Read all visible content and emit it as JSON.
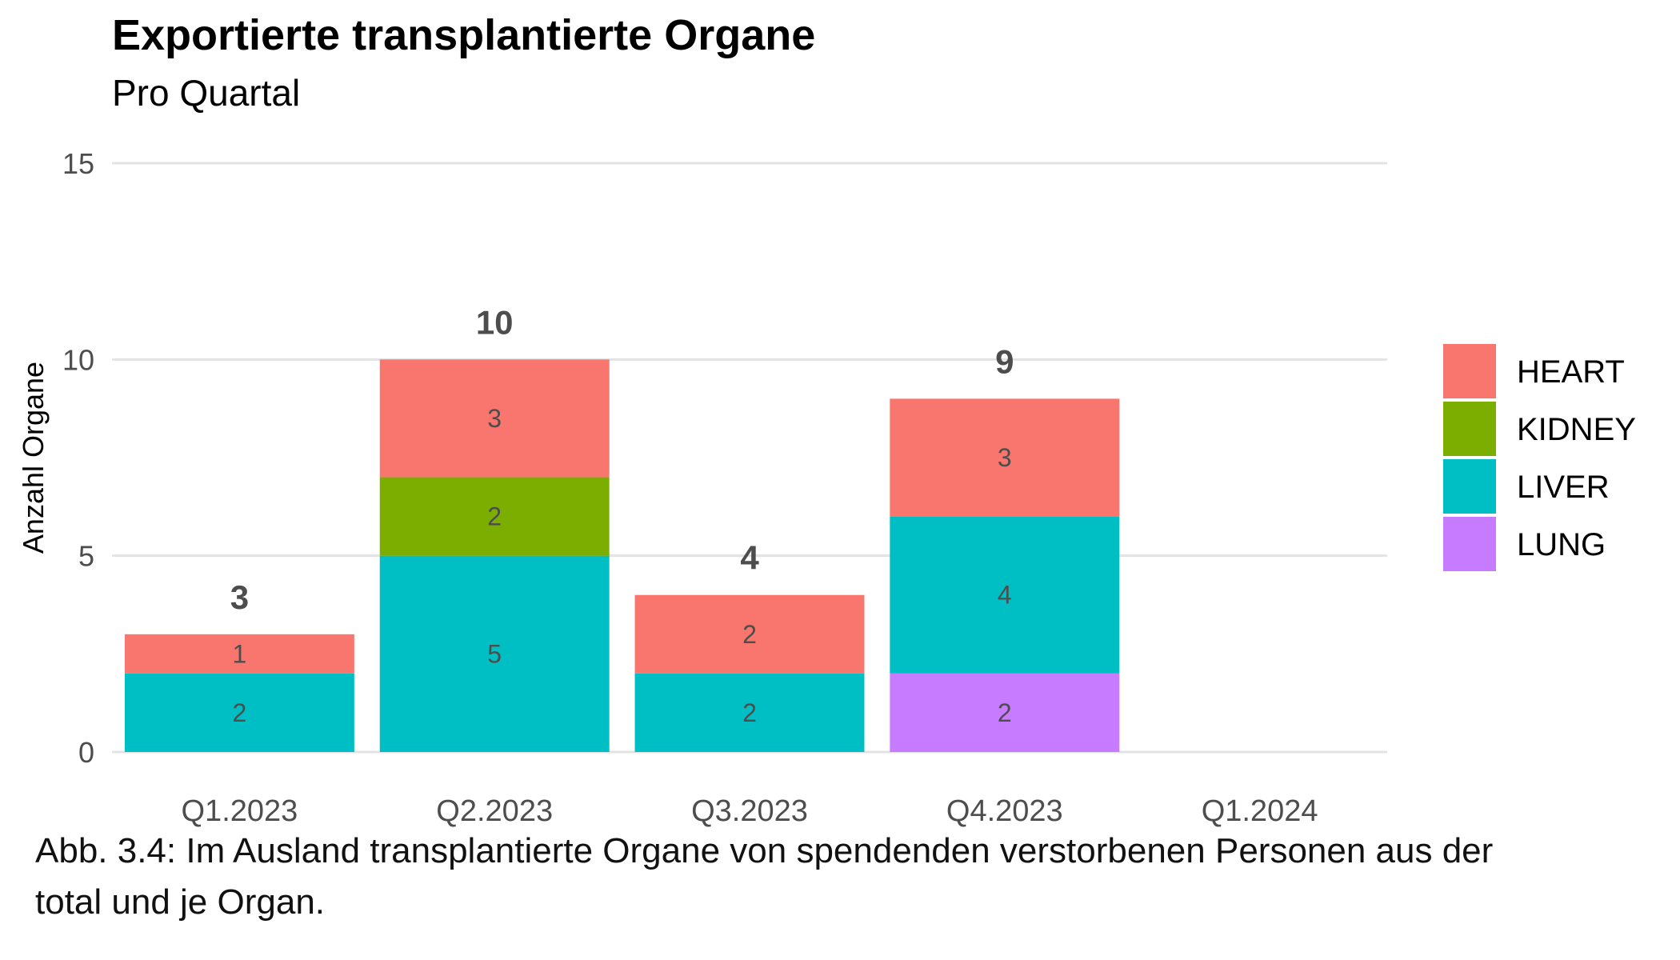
{
  "chart_data": {
    "type": "bar",
    "stacked": true,
    "title": "Exportierte transplantierte Organe",
    "subtitle": "Pro Quartal",
    "xlabel": "",
    "ylabel": "Anzahl Organe",
    "ylim": [
      0,
      15
    ],
    "yticks": [
      0,
      5,
      10,
      15
    ],
    "grid": true,
    "legend_position": "right",
    "categories": [
      "Q1.2023",
      "Q2.2023",
      "Q3.2023",
      "Q4.2023",
      "Q1.2024"
    ],
    "series": [
      {
        "name": "LUNG",
        "color": "#C77CFF",
        "values": [
          0,
          0,
          0,
          2,
          0
        ]
      },
      {
        "name": "LIVER",
        "color": "#00BFC4",
        "values": [
          2,
          5,
          2,
          4,
          0
        ]
      },
      {
        "name": "KIDNEY",
        "color": "#7CAE00",
        "values": [
          0,
          2,
          0,
          0,
          0
        ]
      },
      {
        "name": "HEART",
        "color": "#F8766D",
        "values": [
          1,
          3,
          2,
          3,
          0
        ]
      }
    ],
    "legend_order": [
      "HEART",
      "KIDNEY",
      "LIVER",
      "LUNG"
    ],
    "totals": [
      3,
      10,
      4,
      9,
      null
    ]
  },
  "caption": {
    "line1": "Abb. 3.4: Im Ausland transplantierte Organe von spendenden verstorbenen Personen aus der",
    "line2": "total und je Organ."
  }
}
